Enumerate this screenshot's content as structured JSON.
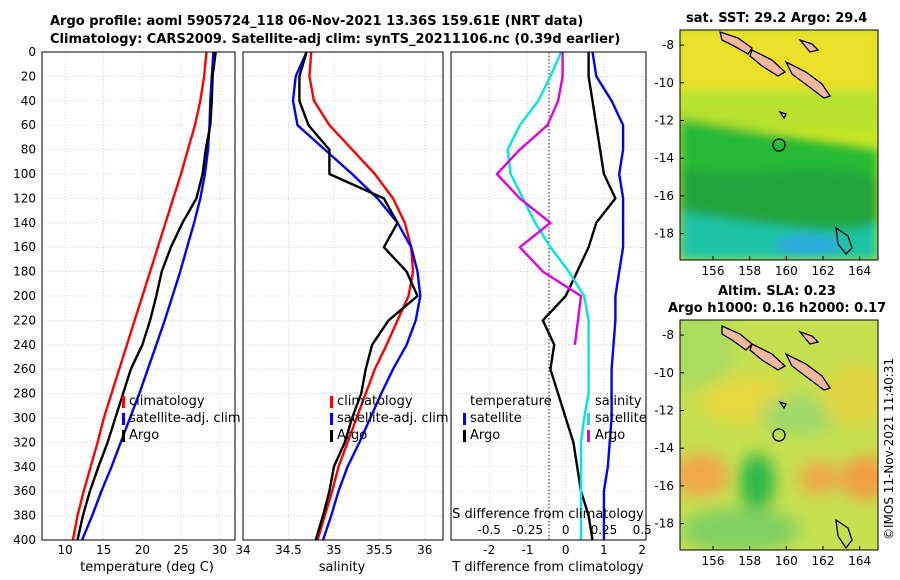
{
  "title_line1": "Argo profile: aoml 5905724_118 06-Nov-2021 13.36S 159.61E (NRT data)",
  "title_line2": "Climatology: CARS2009. Satellite-adj clim: synTS_20211106.nc (0.39d earlier)",
  "side_label": "©IMOS 11-Nov-2021 11:40:31",
  "depth_ticks": [
    "0",
    "20",
    "40",
    "60",
    "80",
    "100",
    "120",
    "140",
    "160",
    "180",
    "200",
    "220",
    "240",
    "260",
    "280",
    "300",
    "320",
    "340",
    "360",
    "380",
    "400"
  ],
  "colors": {
    "climatology": "#ff0000",
    "satellite": "#0000ff",
    "argo": "#000000",
    "t_diff": "#00e5e5",
    "s_diff": "#e000e0"
  },
  "chart_data": [
    {
      "type": "line",
      "name": "temperature",
      "xlabel": "temperature (deg C)",
      "ylabel": "depth",
      "xlim": [
        7,
        32
      ],
      "ylim": [
        400,
        0
      ],
      "xticks": [
        "10",
        "15",
        "20",
        "25",
        "30"
      ],
      "legend": [
        "climatology",
        "satellite-adj. clim",
        "Argo"
      ],
      "series": [
        {
          "name": "climatology",
          "color": "#ff0000",
          "x": [
            28.3,
            28.0,
            27.5,
            26.8,
            25.9,
            25.0,
            24.0,
            23.0,
            22.0,
            21.0,
            20.0,
            19.0,
            18.0,
            17.0,
            16.0,
            15.0,
            14.2,
            13.3,
            12.4,
            11.6,
            11.0
          ],
          "y": [
            0,
            20,
            40,
            60,
            80,
            100,
            120,
            140,
            160,
            180,
            200,
            220,
            240,
            260,
            280,
            300,
            320,
            340,
            360,
            380,
            400
          ]
        },
        {
          "name": "satellite-adj. clim",
          "color": "#0000ff",
          "x": [
            29.2,
            29.0,
            28.8,
            28.7,
            28.5,
            28.1,
            27.5,
            26.7,
            25.8,
            24.9,
            23.9,
            22.9,
            21.8,
            20.7,
            19.6,
            18.4,
            17.2,
            16.0,
            14.7,
            13.5,
            12.2
          ],
          "y": [
            0,
            20,
            40,
            60,
            80,
            100,
            120,
            140,
            160,
            180,
            200,
            220,
            240,
            260,
            280,
            300,
            320,
            340,
            360,
            380,
            400
          ]
        },
        {
          "name": "Argo",
          "color": "#000000",
          "x": [
            29.5,
            29.1,
            29.0,
            28.8,
            28.2,
            27.8,
            27.0,
            25.2,
            23.7,
            22.5,
            21.8,
            21.0,
            20.0,
            18.5,
            17.5,
            16.5,
            15.5,
            14.3,
            13.2,
            12.3,
            11.6
          ],
          "y": [
            0,
            20,
            40,
            60,
            80,
            100,
            120,
            140,
            160,
            180,
            200,
            220,
            240,
            260,
            280,
            300,
            320,
            340,
            360,
            380,
            400
          ]
        }
      ]
    },
    {
      "type": "line",
      "name": "salinity",
      "xlabel": "salinity",
      "ylabel": "depth",
      "xlim": [
        34,
        36.2
      ],
      "ylim": [
        400,
        0
      ],
      "xticks": [
        "34",
        "34.5",
        "35",
        "35.5",
        "36"
      ],
      "legend": [
        "climatology",
        "satellite-adj. clim",
        "Argo"
      ],
      "series": [
        {
          "name": "climatology",
          "color": "#ff0000",
          "x": [
            34.75,
            34.73,
            34.78,
            34.95,
            35.2,
            35.45,
            35.65,
            35.78,
            35.85,
            35.87,
            35.82,
            35.7,
            35.58,
            35.45,
            35.35,
            35.25,
            35.15,
            35.05,
            34.98,
            34.9,
            34.82
          ],
          "y": [
            0,
            20,
            40,
            60,
            80,
            100,
            120,
            140,
            160,
            180,
            200,
            220,
            240,
            260,
            280,
            300,
            320,
            340,
            360,
            380,
            400
          ]
        },
        {
          "name": "satellite-adj. clim",
          "color": "#0000ff",
          "x": [
            34.7,
            34.58,
            34.55,
            34.6,
            34.9,
            35.2,
            35.48,
            35.7,
            35.85,
            35.92,
            35.95,
            35.9,
            35.8,
            35.65,
            35.52,
            35.4,
            35.28,
            35.15,
            35.05,
            34.97,
            34.88
          ],
          "y": [
            0,
            20,
            40,
            60,
            80,
            100,
            120,
            140,
            160,
            180,
            200,
            220,
            240,
            260,
            280,
            300,
            320,
            340,
            360,
            380,
            400
          ]
        },
        {
          "name": "Argo",
          "color": "#000000",
          "x": [
            34.7,
            34.62,
            34.62,
            34.72,
            34.95,
            34.95,
            35.55,
            35.7,
            35.55,
            35.8,
            35.92,
            35.6,
            35.42,
            35.35,
            35.3,
            35.2,
            35.12,
            35.0,
            34.95,
            34.88,
            34.8
          ],
          "y": [
            0,
            20,
            40,
            60,
            80,
            100,
            120,
            140,
            160,
            180,
            200,
            220,
            240,
            260,
            280,
            300,
            320,
            340,
            360,
            380,
            400
          ]
        }
      ]
    },
    {
      "type": "line",
      "name": "difference from climatology",
      "xlabel": "T difference from climatology",
      "top_axis_label": "S difference from climatology",
      "ylabel": "depth",
      "xlim": [
        -3,
        2.1
      ],
      "ylim": [
        400,
        0
      ],
      "xticks": [
        "-2",
        "-1",
        "0",
        "1",
        "2"
      ],
      "s_xticks": [
        "-0.5",
        "-0.25",
        "0",
        "0.25",
        "0.5"
      ],
      "legend_temperature": {
        "title": "temperature",
        "items": [
          "satellite",
          "Argo"
        ]
      },
      "legend_salinity": {
        "title": "salinity",
        "items": [
          "satellite",
          "Argo"
        ]
      },
      "series": [
        {
          "name": "T satellite",
          "color": "#0000ff",
          "x": [
            0.7,
            0.8,
            1.2,
            1.5,
            1.5,
            1.4,
            1.5,
            1.5,
            1.5,
            1.4,
            1.3,
            1.3,
            1.25,
            1.2,
            1.2,
            1.2,
            1.15,
            1.1,
            1.0,
            1.0,
            1.0
          ],
          "y": [
            0,
            20,
            40,
            60,
            80,
            100,
            120,
            140,
            160,
            180,
            200,
            220,
            240,
            260,
            280,
            300,
            320,
            340,
            360,
            380,
            400
          ]
        },
        {
          "name": "T Argo",
          "color": "#000000",
          "x": [
            0.6,
            0.6,
            0.7,
            0.8,
            0.9,
            1.0,
            1.3,
            0.8,
            0.6,
            0.3,
            0.0,
            -0.6,
            -0.3,
            -0.4,
            -0.2,
            0.0,
            0.2,
            0.3,
            0.4,
            0.6,
            0.7
          ],
          "y": [
            0,
            20,
            40,
            60,
            80,
            100,
            120,
            140,
            160,
            180,
            200,
            220,
            240,
            260,
            280,
            300,
            320,
            340,
            360,
            380,
            400
          ]
        },
        {
          "name": "S satellite",
          "color": "#00e5e5",
          "x": [
            -0.03,
            -0.1,
            -0.18,
            -0.3,
            -0.38,
            -0.36,
            -0.28,
            -0.2,
            -0.1,
            0.02,
            0.12,
            0.15,
            0.15,
            0.15,
            0.15,
            0.12,
            0.1,
            0.1,
            0.1,
            0.1,
            0.1
          ],
          "y": [
            0,
            20,
            40,
            60,
            80,
            100,
            120,
            140,
            160,
            180,
            200,
            220,
            240,
            260,
            280,
            300,
            320,
            340,
            360,
            380,
            400
          ]
        },
        {
          "name": "S Argo",
          "color": "#e000e0",
          "x": [
            -0.02,
            -0.02,
            -0.05,
            -0.12,
            -0.3,
            -0.45,
            -0.3,
            -0.1,
            -0.3,
            -0.15,
            0.1,
            0.08,
            0.06
          ],
          "y": [
            0,
            20,
            40,
            60,
            80,
            100,
            120,
            140,
            160,
            180,
            200,
            220,
            240
          ]
        }
      ]
    },
    {
      "type": "heatmap",
      "name": "satellite SST map",
      "title": "sat. SST: 29.2 Argo: 29.4",
      "xlim": [
        154.2,
        165
      ],
      "ylim": [
        -19.4,
        -7.2
      ],
      "xticks": [
        "156",
        "158",
        "160",
        "162",
        "164"
      ],
      "yticks": [
        "-8",
        "-10",
        "-12",
        "-14",
        "-16",
        "-18"
      ],
      "profile_location": [
        159.61,
        -13.36
      ]
    },
    {
      "type": "heatmap",
      "name": "altimetry SLA map",
      "title_line1": "Altim. SLA: 0.23",
      "title_line2": "Argo h1000: 0.16 h2000: 0.17",
      "xlim": [
        154.2,
        165
      ],
      "ylim": [
        -19.4,
        -7.2
      ],
      "xticks": [
        "156",
        "158",
        "160",
        "162",
        "164"
      ],
      "yticks": [
        "-8",
        "-10",
        "-12",
        "-14",
        "-16",
        "-18"
      ],
      "profile_location": [
        159.61,
        -13.36
      ]
    }
  ]
}
